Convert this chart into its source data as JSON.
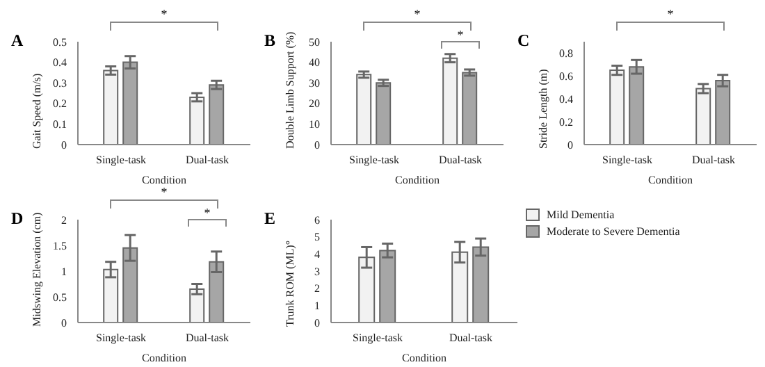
{
  "chart_data": [
    {
      "type": "bar",
      "title": "A",
      "categories": [
        "Single-task",
        "Dual-task"
      ],
      "xlabel": "Condition",
      "ylabel": "Gait Speed (m/s)",
      "ylim": [
        0,
        0.5
      ],
      "yticks": [
        0,
        0.1,
        0.2,
        0.3,
        0.4,
        0.5
      ],
      "legend": false,
      "annotations": [
        "*"
      ],
      "series": [
        {
          "color": "#f2f2f2",
          "values": [
            0.36,
            0.23
          ],
          "errors": [
            0.02,
            0.02
          ]
        },
        {
          "color": "#a6a6a6",
          "values": [
            0.4,
            0.29
          ],
          "errors": [
            0.03,
            0.02
          ]
        }
      ]
    },
    {
      "type": "bar",
      "title": "B",
      "categories": [
        "Single-task",
        "Dual-task"
      ],
      "xlabel": "Condition",
      "ylabel": "Double Limb Support (%)",
      "ylim": [
        0,
        50
      ],
      "yticks": [
        0,
        10,
        20,
        30,
        40,
        50
      ],
      "legend": false,
      "annotations": [
        "*",
        "*"
      ],
      "series": [
        {
          "color": "#f2f2f2",
          "values": [
            34,
            42
          ],
          "errors": [
            1.5,
            2
          ]
        },
        {
          "color": "#a6a6a6",
          "values": [
            30,
            35
          ],
          "errors": [
            1.5,
            1.5
          ]
        }
      ]
    },
    {
      "type": "bar",
      "title": "C",
      "categories": [
        "Single-task",
        "Dual-task"
      ],
      "xlabel": "Condition",
      "ylabel": "Stride Length (m)",
      "ylim": [
        0,
        0.9
      ],
      "yticks": [
        0,
        0.2,
        0.4,
        0.6,
        0.8
      ],
      "legend": false,
      "annotations": [
        "*"
      ],
      "series": [
        {
          "color": "#f2f2f2",
          "values": [
            0.65,
            0.49
          ],
          "errors": [
            0.04,
            0.04
          ]
        },
        {
          "color": "#a6a6a6",
          "values": [
            0.68,
            0.56
          ],
          "errors": [
            0.06,
            0.05
          ]
        }
      ]
    },
    {
      "type": "bar",
      "title": "D",
      "categories": [
        "Single-task",
        "Dual-task"
      ],
      "xlabel": "Condition",
      "ylabel": "Midswing Elevation (cm)",
      "ylim": [
        0,
        2
      ],
      "yticks": [
        0,
        0.5,
        1,
        1.5,
        2
      ],
      "legend": false,
      "annotations": [
        "*",
        "*"
      ],
      "series": [
        {
          "color": "#f2f2f2",
          "values": [
            1.03,
            0.65
          ],
          "errors": [
            0.15,
            0.1
          ]
        },
        {
          "color": "#a6a6a6",
          "values": [
            1.45,
            1.18
          ],
          "errors": [
            0.25,
            0.2
          ]
        }
      ]
    },
    {
      "type": "bar",
      "title": "E",
      "categories": [
        "Single-task",
        "Dual-task"
      ],
      "xlabel": "Condition",
      "ylabel": "Trunk ROM (ML)°",
      "ylim": [
        0,
        6
      ],
      "yticks": [
        0,
        1,
        2,
        3,
        4,
        5,
        6
      ],
      "legend": "right",
      "series": [
        {
          "name": "Mild Dementia",
          "color": "#f2f2f2",
          "values": [
            3.8,
            4.1
          ],
          "errors": [
            0.6,
            0.6
          ]
        },
        {
          "name": "Moderate to Severe Dementia",
          "color": "#a6a6a6",
          "values": [
            4.2,
            4.4
          ],
          "errors": [
            0.4,
            0.5
          ]
        }
      ]
    }
  ]
}
